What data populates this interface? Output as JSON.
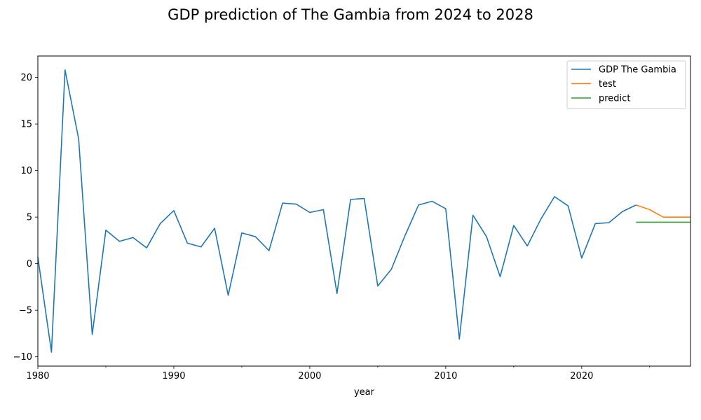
{
  "chart_data": {
    "type": "line",
    "title": "GDP prediction of The Gambia from 2024 to 2028",
    "xlabel": "year",
    "ylabel": "",
    "xlim": [
      1980,
      2028
    ],
    "ylim": [
      -11,
      22.3
    ],
    "x_ticks": [
      1980,
      1990,
      2000,
      2010,
      2020
    ],
    "y_ticks": [
      -10,
      -5,
      0,
      5,
      10,
      15,
      20
    ],
    "legend_position": "top-right",
    "grid": false,
    "series": [
      {
        "name": "GDP The Gambia",
        "color": "#1f77b4",
        "x": [
          1980,
          1981,
          1982,
          1983,
          1984,
          1985,
          1986,
          1987,
          1988,
          1989,
          1990,
          1991,
          1992,
          1993,
          1994,
          1995,
          1996,
          1997,
          1998,
          1999,
          2000,
          2001,
          2002,
          2003,
          2004,
          2005,
          2006,
          2007,
          2008,
          2009,
          2010,
          2011,
          2012,
          2013,
          2014,
          2015,
          2016,
          2017,
          2018,
          2019,
          2020,
          2021,
          2022,
          2023,
          2024
        ],
        "values": [
          0.7,
          -9.5,
          20.8,
          13.4,
          -7.6,
          3.6,
          2.4,
          2.8,
          1.7,
          4.3,
          5.7,
          2.2,
          1.8,
          3.8,
          -3.4,
          3.3,
          2.9,
          1.4,
          6.5,
          6.4,
          5.5,
          5.8,
          -3.2,
          6.9,
          7.0,
          -2.4,
          -0.6,
          3.0,
          6.3,
          6.7,
          5.9,
          -8.1,
          5.2,
          2.9,
          -1.4,
          4.1,
          1.9,
          4.8,
          7.2,
          6.2,
          0.6,
          4.3,
          4.4,
          5.6,
          6.3
        ]
      },
      {
        "name": "test",
        "color": "#ff7f0e",
        "x": [
          2024,
          2025,
          2026,
          2027,
          2028
        ],
        "values": [
          6.3,
          5.8,
          5.0,
          5.0,
          5.0
        ]
      },
      {
        "name": "predict",
        "color": "#2ca02c",
        "x": [
          2024,
          2025,
          2026,
          2027,
          2028
        ],
        "values": [
          4.45,
          4.45,
          4.45,
          4.45,
          4.45
        ]
      }
    ]
  }
}
